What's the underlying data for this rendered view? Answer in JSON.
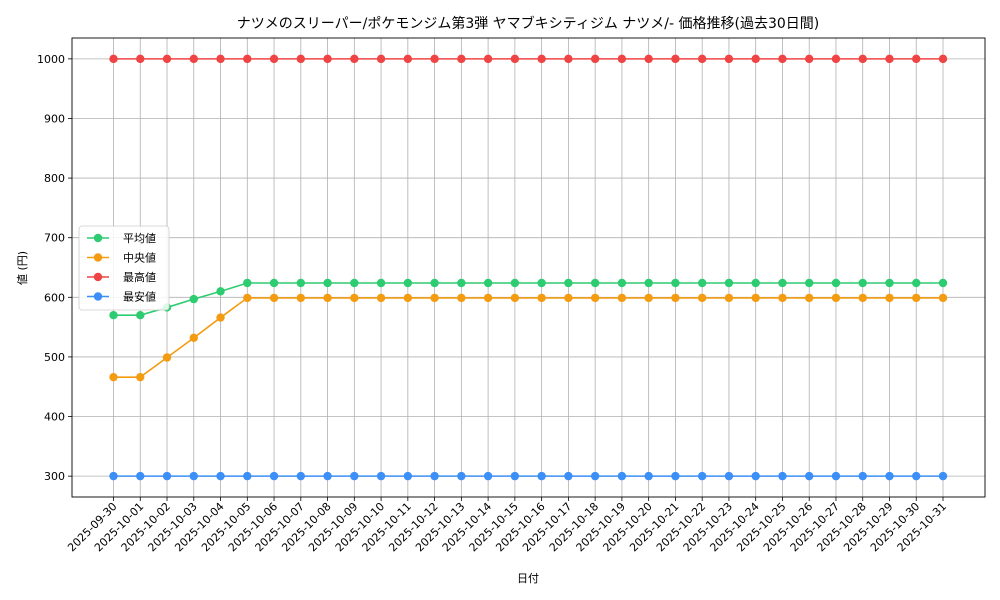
{
  "chart_data": {
    "type": "line",
    "title": "ナツメのスリーパー/ポケモンジム第3弾 ヤマブキシティジム ナツメ/- 価格推移(過去30日間)",
    "xlabel": "日付",
    "ylabel": "値 (円)",
    "ylim": [
      265,
      1035
    ],
    "yticks": [
      300,
      400,
      500,
      600,
      700,
      800,
      900,
      1000
    ],
    "grid": true,
    "legend_position": "center-left",
    "x": [
      "2025-09-30",
      "2025-10-01",
      "2025-10-02",
      "2025-10-03",
      "2025-10-04",
      "2025-10-05",
      "2025-10-06",
      "2025-10-07",
      "2025-10-08",
      "2025-10-09",
      "2025-10-10",
      "2025-10-11",
      "2025-10-12",
      "2025-10-13",
      "2025-10-14",
      "2025-10-15",
      "2025-10-16",
      "2025-10-17",
      "2025-10-18",
      "2025-10-19",
      "2025-10-20",
      "2025-10-21",
      "2025-10-22",
      "2025-10-23",
      "2025-10-24",
      "2025-10-25",
      "2025-10-26",
      "2025-10-27",
      "2025-10-28",
      "2025-10-29",
      "2025-10-30",
      "2025-10-31"
    ],
    "series": [
      {
        "name": "平均値",
        "color": "#2ecc71",
        "values": [
          570,
          570,
          583,
          597,
          610,
          624,
          624,
          624,
          624,
          624,
          624,
          624,
          624,
          624,
          624,
          624,
          624,
          624,
          624,
          624,
          624,
          624,
          624,
          624,
          624,
          624,
          624,
          624,
          624,
          624,
          624,
          624
        ]
      },
      {
        "name": "中央値",
        "color": "#f39c12",
        "values": [
          466,
          466,
          499,
          532,
          566,
          599,
          599,
          599,
          599,
          599,
          599,
          599,
          599,
          599,
          599,
          599,
          599,
          599,
          599,
          599,
          599,
          599,
          599,
          599,
          599,
          599,
          599,
          599,
          599,
          599,
          599,
          599
        ]
      },
      {
        "name": "最高値",
        "color": "#ef4444",
        "values": [
          1000,
          1000,
          1000,
          1000,
          1000,
          1000,
          1000,
          1000,
          1000,
          1000,
          1000,
          1000,
          1000,
          1000,
          1000,
          1000,
          1000,
          1000,
          1000,
          1000,
          1000,
          1000,
          1000,
          1000,
          1000,
          1000,
          1000,
          1000,
          1000,
          1000,
          1000,
          1000
        ]
      },
      {
        "name": "最安値",
        "color": "#3b8ff6",
        "values": [
          300,
          300,
          300,
          300,
          300,
          300,
          300,
          300,
          300,
          300,
          300,
          300,
          300,
          300,
          300,
          300,
          300,
          300,
          300,
          300,
          300,
          300,
          300,
          300,
          300,
          300,
          300,
          300,
          300,
          300,
          300,
          300
        ]
      }
    ]
  }
}
